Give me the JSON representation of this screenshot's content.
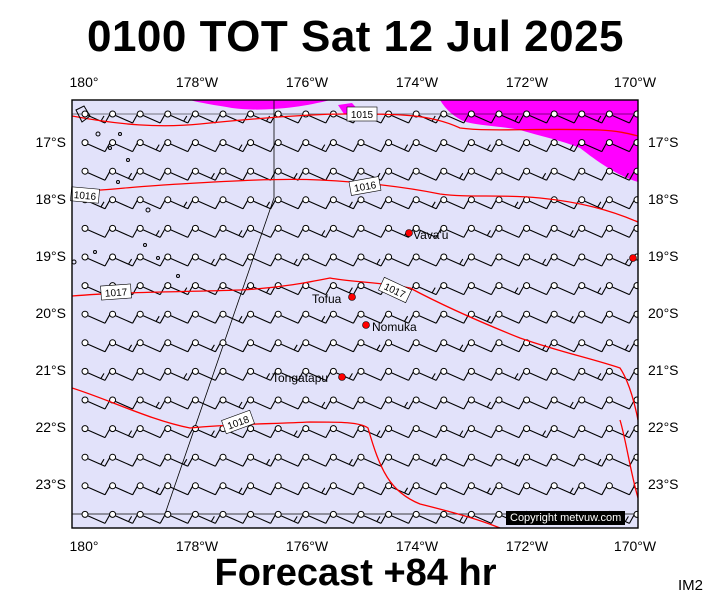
{
  "header": {
    "title": "0100 TOT Sat 12 Jul 2025"
  },
  "footer": {
    "forecast": "Forecast +84 hr",
    "code": "IM2"
  },
  "map": {
    "lon_labels": [
      "180°",
      "178°W",
      "176°W",
      "174°W",
      "172°W",
      "170°W"
    ],
    "lat_labels": [
      "17°S",
      "18°S",
      "19°S",
      "20°S",
      "21°S",
      "22°S",
      "23°S"
    ],
    "isobars": [
      "1015",
      "1016",
      "1017",
      "1018"
    ],
    "places": [
      "Vava'u",
      "Tofua",
      "Nomuka",
      "Tongatapu"
    ],
    "copyright": "Copyright metvuw.com",
    "colors": {
      "background": "#e2e2fa",
      "isobar": "#ff0000",
      "rain": "#ff00ff",
      "place": "#ff0000"
    }
  }
}
